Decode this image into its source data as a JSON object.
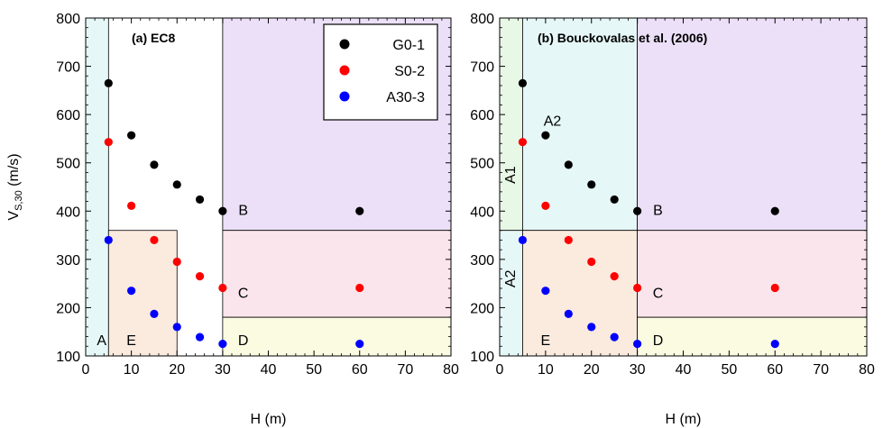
{
  "chart_data": [
    {
      "type": "scatter",
      "title": "(a) EC8",
      "xlabel": "H (m)",
      "ylabel_main": "V",
      "ylabel_sub": "S,30",
      "ylabel_unit": " (m/s)",
      "xlim": [
        0,
        80
      ],
      "ylim": [
        100,
        800
      ],
      "xticks": [
        0,
        10,
        20,
        30,
        40,
        50,
        60,
        70,
        80
      ],
      "yticks": [
        100,
        200,
        300,
        400,
        500,
        600,
        700,
        800
      ],
      "grid": false,
      "legend_position": "top-right",
      "zones": [
        {
          "label": "A",
          "x0": 0,
          "x1": 5,
          "y0": 100,
          "y1": 800,
          "color": "#e6f7f7",
          "label_x": 3.5,
          "label_y": 130,
          "rotate": false
        },
        {
          "label": "E",
          "x0": 5,
          "x1": 20,
          "y0": 100,
          "y1": 360,
          "color": "#fbeade",
          "label_x": 10,
          "label_y": 130,
          "rotate": false
        },
        {
          "label": "B",
          "x0": 30,
          "x1": 80,
          "y0": 360,
          "y1": 800,
          "color": "#ece0f8",
          "label_x": 34.5,
          "label_y": 400,
          "rotate": false
        },
        {
          "label": "C",
          "x0": 30,
          "x1": 80,
          "y0": 180,
          "y1": 360,
          "color": "#fbe5ec",
          "label_x": 34.5,
          "label_y": 228,
          "rotate": false
        },
        {
          "label": "D",
          "x0": 30,
          "x1": 80,
          "y0": 100,
          "y1": 180,
          "color": "#fbfbe2",
          "label_x": 34.5,
          "label_y": 130,
          "rotate": false
        }
      ],
      "series": [
        {
          "name": "G0-1",
          "color": "#000000",
          "x": [
            5,
            10,
            15,
            20,
            25,
            30,
            60
          ],
          "y": [
            665,
            557,
            496,
            455,
            424,
            400,
            400
          ]
        },
        {
          "name": "S0-2",
          "color": "#ff0000",
          "x": [
            5,
            10,
            15,
            20,
            25,
            30,
            60
          ],
          "y": [
            543,
            411,
            340,
            295,
            265,
            241,
            241
          ]
        },
        {
          "name": "A30-3",
          "color": "#0000ff",
          "x": [
            5,
            10,
            15,
            20,
            25,
            30,
            60
          ],
          "y": [
            340,
            235,
            187,
            160,
            139,
            125,
            125
          ]
        }
      ]
    },
    {
      "type": "scatter",
      "title": "(b) Bouckovalas et al. (2006)",
      "xlabel": "H (m)",
      "xlim": [
        0,
        80
      ],
      "ylim": [
        100,
        800
      ],
      "xticks": [
        0,
        10,
        20,
        30,
        40,
        50,
        60,
        70,
        80
      ],
      "yticks": [
        100,
        200,
        300,
        400,
        500,
        600,
        700,
        800
      ],
      "grid": false,
      "zones": [
        {
          "label": "A1",
          "x0": 0,
          "x1": 5,
          "y0": 360,
          "y1": 800,
          "color": "#e8f8e6",
          "label_x": 2.5,
          "label_y": 475,
          "rotate": true
        },
        {
          "label": "A2",
          "x0": 0,
          "x1": 5,
          "y0": 100,
          "y1": 360,
          "color": "#e6f7f7",
          "label_x": 2.5,
          "label_y": 260,
          "rotate": true
        },
        {
          "label": "A2",
          "x0": 5,
          "x1": 30,
          "y0": 360,
          "y1": 800,
          "color": "#e6f7f7",
          "label_x": 11.5,
          "label_y": 585,
          "rotate": false
        },
        {
          "label": "E",
          "x0": 5,
          "x1": 30,
          "y0": 100,
          "y1": 360,
          "color": "#fbeade",
          "label_x": 10,
          "label_y": 130,
          "rotate": false
        },
        {
          "label": "B",
          "x0": 30,
          "x1": 80,
          "y0": 360,
          "y1": 800,
          "color": "#ece0f8",
          "label_x": 34.5,
          "label_y": 400,
          "rotate": false
        },
        {
          "label": "C",
          "x0": 30,
          "x1": 80,
          "y0": 180,
          "y1": 360,
          "color": "#fbe5ec",
          "label_x": 34.5,
          "label_y": 228,
          "rotate": false
        },
        {
          "label": "D",
          "x0": 30,
          "x1": 80,
          "y0": 100,
          "y1": 180,
          "color": "#fbfbe2",
          "label_x": 34.5,
          "label_y": 130,
          "rotate": false
        }
      ],
      "series": [
        {
          "name": "G0-1",
          "color": "#000000",
          "x": [
            5,
            10,
            15,
            20,
            25,
            30,
            60
          ],
          "y": [
            665,
            557,
            496,
            455,
            424,
            400,
            400
          ]
        },
        {
          "name": "S0-2",
          "color": "#ff0000",
          "x": [
            5,
            10,
            15,
            20,
            25,
            30,
            60
          ],
          "y": [
            543,
            411,
            340,
            295,
            265,
            241,
            241
          ]
        },
        {
          "name": "A30-3",
          "color": "#0000ff",
          "x": [
            5,
            10,
            15,
            20,
            25,
            30,
            60
          ],
          "y": [
            340,
            235,
            187,
            160,
            139,
            125,
            125
          ]
        }
      ]
    }
  ]
}
